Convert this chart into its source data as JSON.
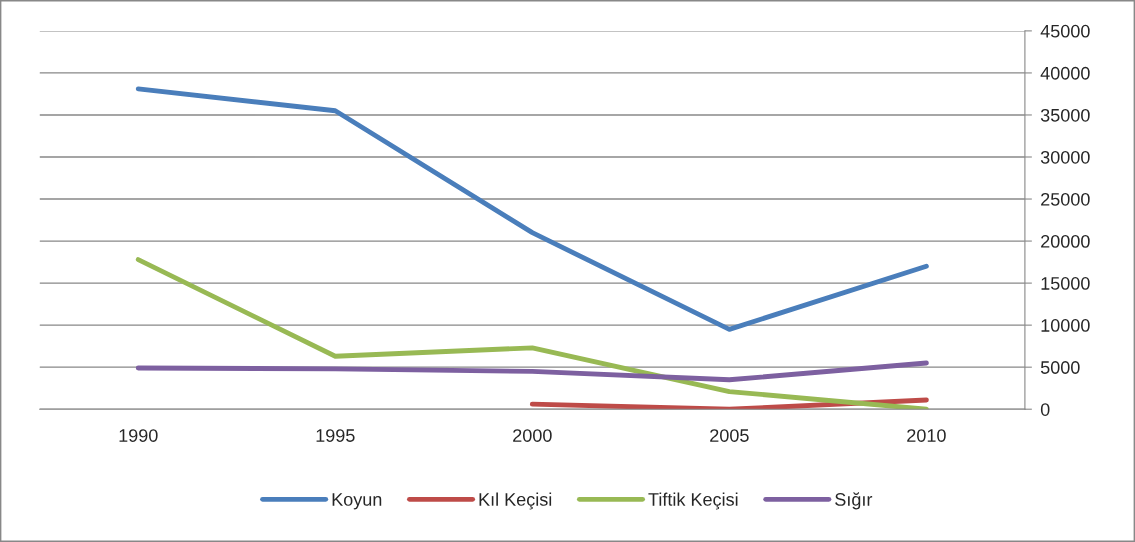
{
  "chart_data": {
    "type": "line",
    "categories": [
      "1990",
      "1995",
      "2000",
      "2005",
      "2010"
    ],
    "series": [
      {
        "name": "Koyun",
        "color": "#4a7ebb",
        "values": [
          38100,
          35500,
          21000,
          9500,
          17000
        ]
      },
      {
        "name": "Kıl Keçisi",
        "color": "#be4b48",
        "values": [
          null,
          null,
          600,
          0,
          1100
        ]
      },
      {
        "name": "Tiftik Keçisi",
        "color": "#98b954",
        "values": [
          17800,
          6300,
          7300,
          2100,
          0
        ]
      },
      {
        "name": "Sığır",
        "color": "#7d60a0",
        "values": [
          4900,
          4800,
          4500,
          3500,
          5500
        ]
      }
    ],
    "ylim": [
      0,
      45000
    ],
    "yticks": [
      0,
      5000,
      10000,
      15000,
      20000,
      25000,
      30000,
      35000,
      40000,
      45000
    ],
    "grid": "y",
    "legend": "bottom",
    "marker": "none",
    "line_style": "solid"
  }
}
